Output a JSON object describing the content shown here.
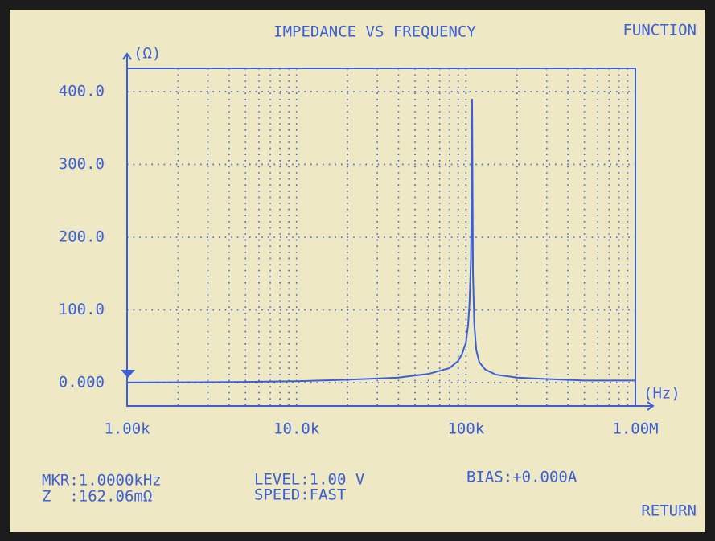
{
  "chart_data": {
    "type": "line",
    "title": "IMPEDANCE VS FREQUENCY",
    "xlabel": "(Hz)",
    "ylabel": "(Ω)",
    "x": [
      1000,
      2000,
      5000,
      10000,
      20000,
      40000,
      60000,
      80000,
      90000,
      95000,
      100000,
      103000,
      105000,
      107000,
      108000,
      108700,
      109500,
      110000,
      112000,
      115000,
      120000,
      130000,
      150000,
      200000,
      300000,
      500000,
      1000000
    ],
    "values": [
      0.16,
      0.4,
      1,
      2,
      4,
      7,
      12,
      20,
      30,
      40,
      55,
      80,
      110,
      170,
      250,
      390,
      245,
      150,
      80,
      45,
      28,
      18,
      11,
      7,
      5,
      3,
      3
    ],
    "color": "#3b5fd6",
    "log_x": true,
    "grid": true,
    "xlim": [
      1000,
      1000000
    ],
    "ylim": [
      -32,
      432
    ],
    "xticks": [
      {
        "value": 1000,
        "label": "1.00k"
      },
      {
        "value": 10000,
        "label": "10.0k"
      },
      {
        "value": 100000,
        "label": "100k"
      },
      {
        "value": 1000000,
        "label": "1.00M"
      }
    ],
    "yticks": [
      {
        "value": 0,
        "label": "0.000"
      },
      {
        "value": 100,
        "label": "100.0"
      },
      {
        "value": 200,
        "label": "200.0"
      },
      {
        "value": 300,
        "label": "300.0"
      },
      {
        "value": 400,
        "label": "400.0"
      }
    ]
  },
  "screen": {
    "function_button": "FUNCTION",
    "marker": "MKR:1.0000kHz",
    "impedance": "Z  :162.06mΩ",
    "level": "LEVEL:1.00 V",
    "speed": "SPEED:FAST",
    "bias": "BIAS:+0.000A",
    "return_button": "RETURN"
  }
}
